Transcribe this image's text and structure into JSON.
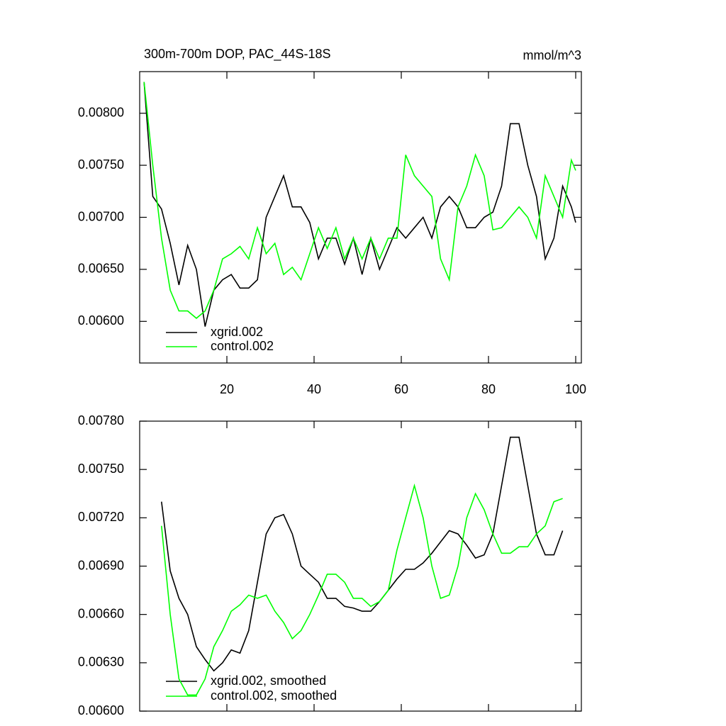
{
  "chart_data": [
    {
      "type": "line",
      "title": "300m-700m DOP, PAC_44S-18S",
      "subtitle": "mmol/m^3",
      "x": [
        1,
        3,
        5,
        7,
        9,
        11,
        13,
        15,
        17,
        19,
        21,
        23,
        25,
        27,
        29,
        31,
        33,
        35,
        37,
        39,
        41,
        43,
        45,
        47,
        49,
        51,
        53,
        55,
        57,
        59,
        61,
        63,
        65,
        67,
        69,
        71,
        73,
        75,
        77,
        79,
        81,
        83,
        85,
        87,
        89,
        91,
        93,
        95,
        97,
        99,
        100
      ],
      "series": [
        {
          "name": "xgrid.002",
          "color": "#000000",
          "values": [
            0.0083,
            0.0072,
            0.00708,
            0.00675,
            0.00635,
            0.00673,
            0.0065,
            0.00595,
            0.0063,
            0.0064,
            0.00645,
            0.00632,
            0.00632,
            0.0064,
            0.007,
            0.0072,
            0.0074,
            0.0071,
            0.0071,
            0.00695,
            0.0066,
            0.0068,
            0.0068,
            0.00655,
            0.0068,
            0.00645,
            0.0068,
            0.0065,
            0.0067,
            0.0069,
            0.0068,
            0.0069,
            0.007,
            0.0068,
            0.0071,
            0.0072,
            0.0071,
            0.0069,
            0.0069,
            0.007,
            0.00705,
            0.0073,
            0.0079,
            0.0079,
            0.0075,
            0.0072,
            0.0066,
            0.0068,
            0.0073,
            0.0071,
            0.00695
          ]
        },
        {
          "name": "control.002",
          "color": "#00ff00",
          "values": [
            0.0083,
            0.0075,
            0.0068,
            0.0063,
            0.0061,
            0.0061,
            0.00603,
            0.0061,
            0.0063,
            0.0066,
            0.00665,
            0.00672,
            0.0066,
            0.0069,
            0.00665,
            0.00675,
            0.00645,
            0.00652,
            0.0064,
            0.00665,
            0.0069,
            0.0067,
            0.0069,
            0.0066,
            0.0068,
            0.0066,
            0.0068,
            0.0066,
            0.0068,
            0.0068,
            0.0076,
            0.0074,
            0.0073,
            0.0072,
            0.0066,
            0.0064,
            0.0071,
            0.0073,
            0.0076,
            0.0074,
            0.00688,
            0.0069,
            0.007,
            0.0071,
            0.007,
            0.0068,
            0.0074,
            0.0072,
            0.007,
            0.00755,
            0.00745
          ]
        }
      ],
      "xlim": [
        0,
        101.3
      ],
      "xticks": [
        20,
        40,
        60,
        80,
        100
      ],
      "xtick_labels": true,
      "ylim": [
        0.0056,
        0.0084
      ],
      "yticks": [
        {
          "value": 0.006,
          "label": "0.00600"
        },
        {
          "value": 0.0065,
          "label": "0.00650"
        },
        {
          "value": 0.007,
          "label": "0.00700"
        },
        {
          "value": 0.0075,
          "label": "0.00750"
        },
        {
          "value": 0.008,
          "label": "0.00800"
        }
      ],
      "legend": "lower left"
    },
    {
      "type": "line",
      "x": [
        5,
        7,
        9,
        11,
        13,
        15,
        17,
        19,
        21,
        23,
        25,
        27,
        29,
        31,
        33,
        35,
        37,
        39,
        41,
        43,
        45,
        47,
        49,
        51,
        53,
        55,
        57,
        59,
        61,
        63,
        65,
        67,
        69,
        71,
        73,
        75,
        77,
        79,
        81,
        83,
        85,
        87,
        89,
        91,
        93,
        95,
        97
      ],
      "series": [
        {
          "name": "xgrid.002, smoothed",
          "color": "#000000",
          "values": [
            0.0073,
            0.00687,
            0.0067,
            0.0066,
            0.0064,
            0.00632,
            0.00625,
            0.0063,
            0.00638,
            0.00636,
            0.0065,
            0.0068,
            0.0071,
            0.0072,
            0.00722,
            0.0071,
            0.0069,
            0.00685,
            0.0068,
            0.0067,
            0.0067,
            0.00665,
            0.00664,
            0.00662,
            0.00662,
            0.00668,
            0.00675,
            0.00682,
            0.00688,
            0.00688,
            0.00692,
            0.00698,
            0.00705,
            0.00712,
            0.0071,
            0.00703,
            0.00695,
            0.00697,
            0.0071,
            0.0074,
            0.0077,
            0.0077,
            0.0074,
            0.0071,
            0.00697,
            0.00697,
            0.00712
          ]
        },
        {
          "name": "control.002, smoothed",
          "color": "#00ff00",
          "values": [
            0.00715,
            0.0066,
            0.0062,
            0.0061,
            0.0061,
            0.0062,
            0.0064,
            0.0065,
            0.00662,
            0.00666,
            0.00672,
            0.0067,
            0.00672,
            0.00662,
            0.00655,
            0.00645,
            0.0065,
            0.0066,
            0.00672,
            0.00685,
            0.00685,
            0.0068,
            0.0067,
            0.0067,
            0.00665,
            0.00668,
            0.00675,
            0.007,
            0.0072,
            0.0074,
            0.0072,
            0.0069,
            0.0067,
            0.00672,
            0.0069,
            0.0072,
            0.00735,
            0.00725,
            0.0071,
            0.00698,
            0.00698,
            0.00702,
            0.00702,
            0.0071,
            0.00715,
            0.0073,
            0.00732
          ]
        }
      ],
      "xlim": [
        0,
        101.3
      ],
      "xticks": [
        20,
        40,
        60,
        80,
        100
      ],
      "xtick_labels": false,
      "ylim": [
        0.006,
        0.0078
      ],
      "yticks": [
        {
          "value": 0.006,
          "label": "0.00600"
        },
        {
          "value": 0.0063,
          "label": "0.00630"
        },
        {
          "value": 0.0066,
          "label": "0.00660"
        },
        {
          "value": 0.0069,
          "label": "0.00690"
        },
        {
          "value": 0.0072,
          "label": "0.00720"
        },
        {
          "value": 0.0075,
          "label": "0.00750"
        },
        {
          "value": 0.0078,
          "label": "0.00780"
        }
      ],
      "legend": "lower left"
    }
  ]
}
